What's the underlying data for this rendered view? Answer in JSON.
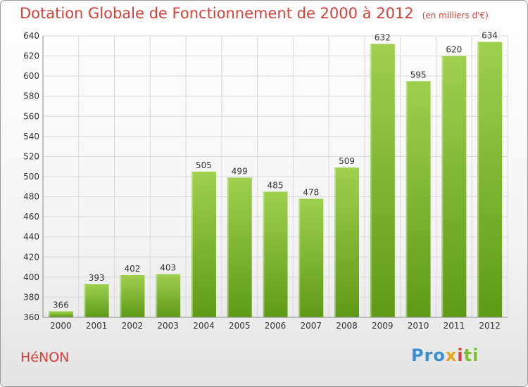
{
  "title": "Dotation Globale de Fonctionnement de 2000 à 2012",
  "subtitle": "(en milliers d'€)",
  "commune": "HéNON",
  "logo": {
    "parts": [
      "Pro",
      "x",
      "i",
      "ti"
    ]
  },
  "colors": {
    "title": "#d4403a",
    "bar_top": "#9fd04e",
    "bar_bottom": "#5f9a16",
    "grid": "#d9d9d9"
  },
  "chart_data": {
    "type": "bar",
    "categories": [
      "2000",
      "2001",
      "2002",
      "2003",
      "2004",
      "2005",
      "2006",
      "2007",
      "2008",
      "2009",
      "2010",
      "2011",
      "2012"
    ],
    "values": [
      366,
      393,
      402,
      403,
      505,
      499,
      485,
      478,
      509,
      632,
      595,
      620,
      634
    ],
    "ylim": [
      360,
      640
    ],
    "yticks": [
      360,
      380,
      400,
      420,
      440,
      460,
      480,
      500,
      520,
      540,
      560,
      580,
      600,
      620,
      640
    ],
    "grid": true
  }
}
